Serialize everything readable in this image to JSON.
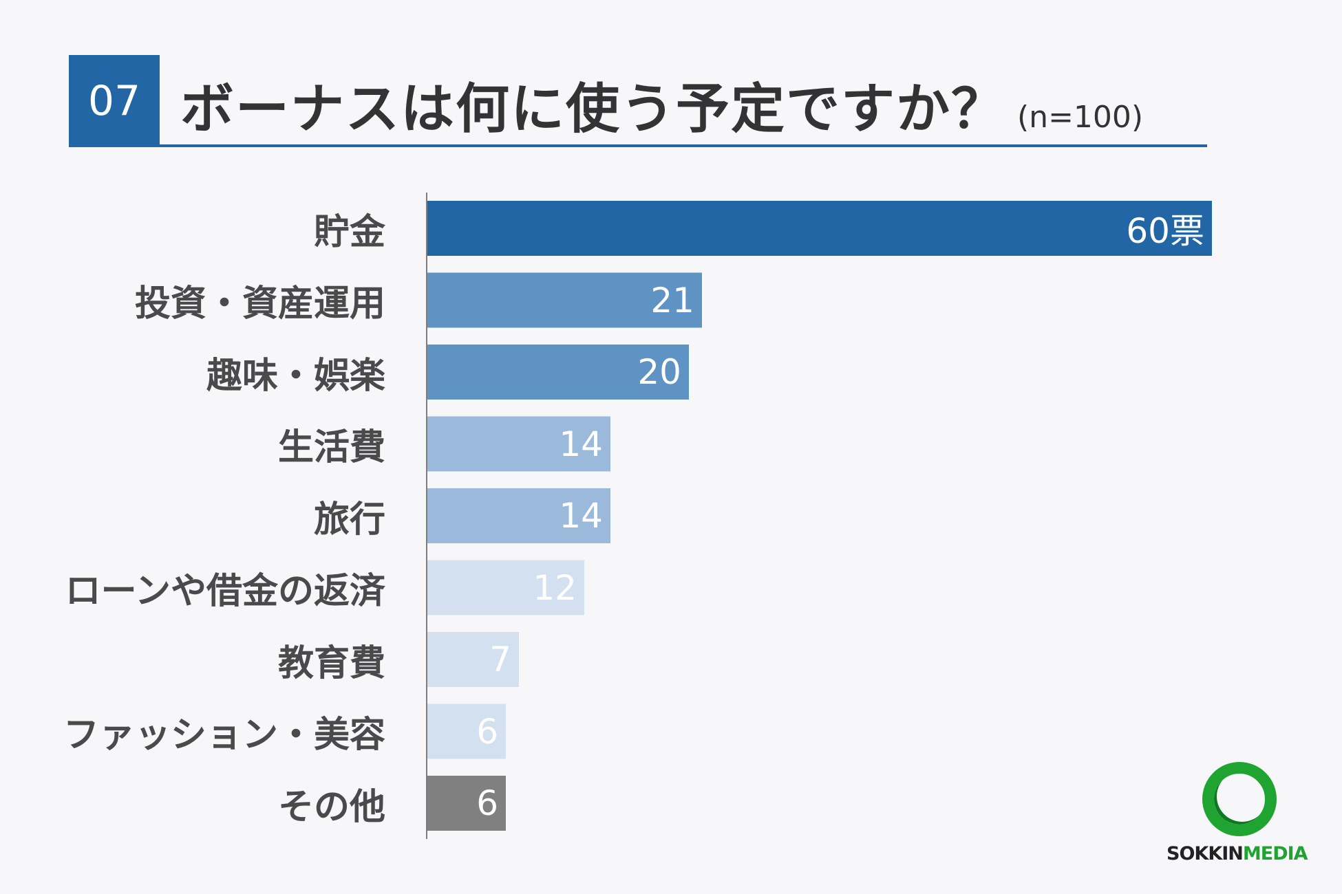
{
  "header": {
    "question_number": "07",
    "title": "ボーナスは何に使う予定ですか？",
    "sample_size": "(n=100)"
  },
  "colors": {
    "accent": "#2266a6",
    "bar_palette": [
      "#2266a6",
      "#5e93c4",
      "#5e93c4",
      "#9bbadb",
      "#9bbadb",
      "#d3e0ef",
      "#d3e0ef",
      "#d3e0ef",
      "#808080"
    ]
  },
  "chart_data": {
    "type": "bar",
    "orientation": "horizontal",
    "categories": [
      "貯金",
      "投資・資産運用",
      "趣味・娯楽",
      "生活費",
      "旅行",
      "ローンや借金の返済",
      "教育費",
      "ファッション・美容",
      "その他"
    ],
    "values": [
      60,
      21,
      20,
      14,
      14,
      12,
      7,
      6,
      6
    ],
    "value_labels": [
      "60票",
      "21",
      "20",
      "14",
      "14",
      "12",
      "7",
      "6",
      "6"
    ],
    "title": "ボーナスは何に使う予定ですか？",
    "xlim": [
      0,
      60
    ],
    "grid": false,
    "legend": "none"
  },
  "logo": {
    "text_primary": "SOKKIN",
    "text_secondary": "MEDIA"
  }
}
